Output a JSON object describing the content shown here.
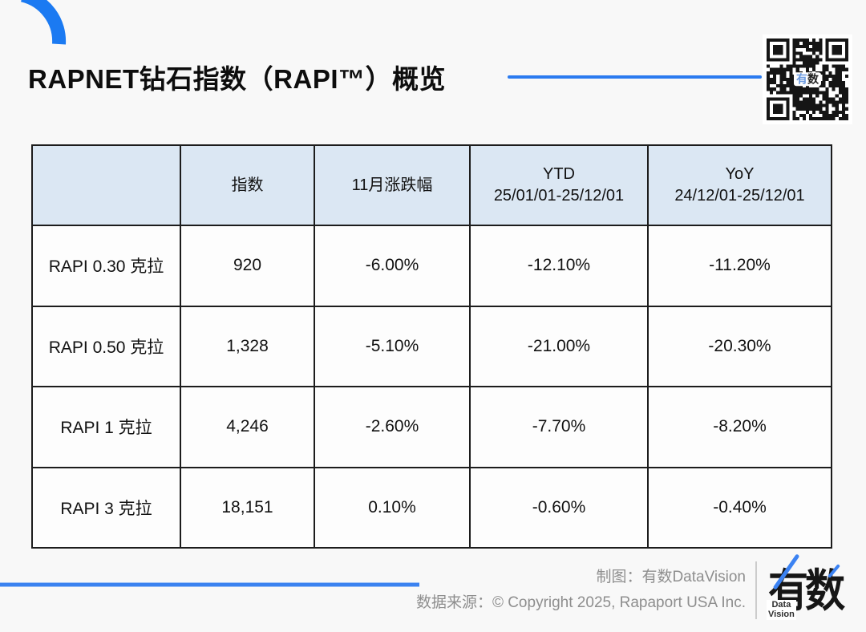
{
  "page": {
    "title": "RAPNET钻石指数（RAPI™）概览",
    "accent_blue": "#2b7bf0",
    "header_bg": "#dbe7f3",
    "table_border": "#1c1c1c"
  },
  "qr": {
    "label1": "有",
    "label2": "数"
  },
  "table": {
    "headers": [
      {
        "line1": "",
        "line2": ""
      },
      {
        "line1": "指数",
        "line2": ""
      },
      {
        "line1": "11月涨跌幅",
        "line2": ""
      },
      {
        "line1": "YTD",
        "line2": "25/01/01-25/12/01"
      },
      {
        "line1": "YoY",
        "line2": "24/12/01-25/12/01"
      }
    ],
    "rows": [
      {
        "label": "RAPI 0.30 克拉",
        "index": "920",
        "month_change": "-6.00%",
        "ytd": "-12.10%",
        "yoy": "-11.20%"
      },
      {
        "label": "RAPI 0.50 克拉",
        "index": "1,328",
        "month_change": "-5.10%",
        "ytd": "-21.00%",
        "yoy": "-20.30%"
      },
      {
        "label": "RAPI 1 克拉",
        "index": "4,246",
        "month_change": "-2.60%",
        "ytd": "-7.70%",
        "yoy": "-8.20%"
      },
      {
        "label": "RAPI 3 克拉",
        "index": "18,151",
        "month_change": "0.10%",
        "ytd": "-0.60%",
        "yoy": "-0.40%"
      }
    ]
  },
  "chart_data": {
    "type": "table",
    "title": "RAPNET钻石指数（RAPI™）概览",
    "columns": [
      "",
      "指数",
      "11月涨跌幅",
      "YTD 25/01/01-25/12/01",
      "YoY 24/12/01-25/12/01"
    ],
    "rows": [
      [
        "RAPI 0.30 克拉",
        920,
        "-6.00%",
        "-12.10%",
        "-11.20%"
      ],
      [
        "RAPI 0.50 克拉",
        1328,
        "-5.10%",
        "-21.00%",
        "-20.30%"
      ],
      [
        "RAPI 1 克拉",
        4246,
        "-2.60%",
        "-7.70%",
        "-8.20%"
      ],
      [
        "RAPI 3 克拉",
        18151,
        "0.10%",
        "-0.60%",
        "-0.40%"
      ]
    ]
  },
  "footer": {
    "made_by": "制图：有数DataVision",
    "source": "数据来源：© Copyright 2025, Rapaport USA Inc."
  },
  "logo": {
    "text": "有数",
    "sub1": "Data",
    "sub2": "Vision"
  }
}
